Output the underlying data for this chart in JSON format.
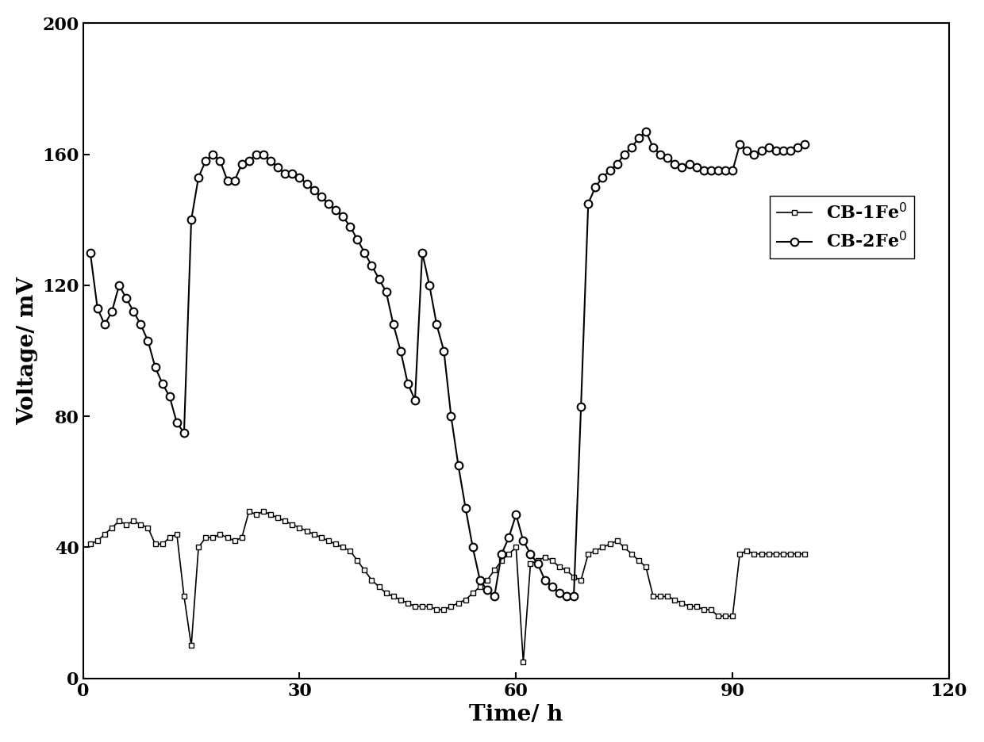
{
  "title": "",
  "xlabel": "Time/ h",
  "ylabel": "Voltage/ mV",
  "xlim": [
    0,
    120
  ],
  "ylim": [
    0,
    200
  ],
  "xticks": [
    0,
    30,
    60,
    90,
    120
  ],
  "yticks": [
    0,
    40,
    80,
    120,
    160,
    200
  ],
  "line_color": "#000000",
  "background_color": "#ffffff",
  "series1_marker": "s",
  "series2_marker": "o",
  "series1_x": [
    1,
    2,
    3,
    4,
    5,
    6,
    7,
    8,
    9,
    10,
    11,
    12,
    13,
    14,
    15,
    16,
    17,
    18,
    19,
    20,
    21,
    22,
    23,
    24,
    25,
    26,
    27,
    28,
    29,
    30,
    31,
    32,
    33,
    34,
    35,
    36,
    37,
    38,
    39,
    40,
    41,
    42,
    43,
    44,
    45,
    46,
    47,
    48,
    49,
    50,
    51,
    52,
    53,
    54,
    55,
    56,
    57,
    58,
    59,
    60,
    61,
    62,
    63,
    64,
    65,
    66,
    67,
    68,
    69,
    70,
    71,
    72,
    73,
    74,
    75,
    76,
    77,
    78,
    79,
    80,
    81,
    82,
    83,
    84,
    85,
    86,
    87,
    88,
    89,
    90,
    91,
    92,
    93,
    94,
    95,
    96,
    97,
    98,
    99,
    100
  ],
  "series1_y": [
    41,
    42,
    44,
    46,
    48,
    47,
    48,
    47,
    46,
    41,
    41,
    43,
    44,
    25,
    10,
    40,
    43,
    43,
    44,
    43,
    42,
    43,
    51,
    50,
    51,
    50,
    49,
    48,
    47,
    46,
    45,
    44,
    43,
    42,
    41,
    40,
    39,
    36,
    33,
    30,
    28,
    26,
    25,
    24,
    23,
    22,
    22,
    22,
    21,
    21,
    22,
    23,
    24,
    26,
    28,
    30,
    33,
    36,
    38,
    40,
    5,
    35,
    36,
    37,
    36,
    34,
    33,
    31,
    30,
    38,
    39,
    40,
    41,
    42,
    40,
    38,
    36,
    34,
    25,
    25,
    25,
    24,
    23,
    22,
    22,
    21,
    21,
    19,
    19,
    19,
    38,
    39,
    38,
    38,
    38,
    38,
    38,
    38,
    38,
    38
  ],
  "series2_x": [
    1,
    2,
    3,
    4,
    5,
    6,
    7,
    8,
    9,
    10,
    11,
    12,
    13,
    14,
    15,
    16,
    17,
    18,
    19,
    20,
    21,
    22,
    23,
    24,
    25,
    26,
    27,
    28,
    29,
    30,
    31,
    32,
    33,
    34,
    35,
    36,
    37,
    38,
    39,
    40,
    41,
    42,
    43,
    44,
    45,
    46,
    47,
    48,
    49,
    50,
    51,
    52,
    53,
    54,
    55,
    56,
    57,
    58,
    59,
    60,
    61,
    62,
    63,
    64,
    65,
    66,
    67,
    68,
    69,
    70,
    71,
    72,
    73,
    74,
    75,
    76,
    77,
    78,
    79,
    80,
    81,
    82,
    83,
    84,
    85,
    86,
    87,
    88,
    89,
    90,
    91,
    92,
    93,
    94,
    95,
    96,
    97,
    98,
    99,
    100
  ],
  "series2_y": [
    130,
    113,
    108,
    112,
    120,
    116,
    112,
    108,
    103,
    95,
    90,
    86,
    78,
    75,
    140,
    153,
    158,
    160,
    158,
    152,
    152,
    157,
    158,
    160,
    160,
    158,
    156,
    154,
    154,
    153,
    151,
    149,
    147,
    145,
    143,
    141,
    138,
    134,
    130,
    126,
    122,
    118,
    108,
    100,
    90,
    85,
    130,
    120,
    108,
    100,
    80,
    65,
    52,
    40,
    30,
    27,
    25,
    38,
    43,
    50,
    42,
    38,
    35,
    30,
    28,
    26,
    25,
    25,
    83,
    145,
    150,
    153,
    155,
    157,
    160,
    162,
    165,
    167,
    162,
    160,
    159,
    157,
    156,
    157,
    156,
    155,
    155,
    155,
    155,
    155,
    163,
    161,
    160,
    161,
    162,
    161,
    161,
    161,
    162,
    163
  ]
}
